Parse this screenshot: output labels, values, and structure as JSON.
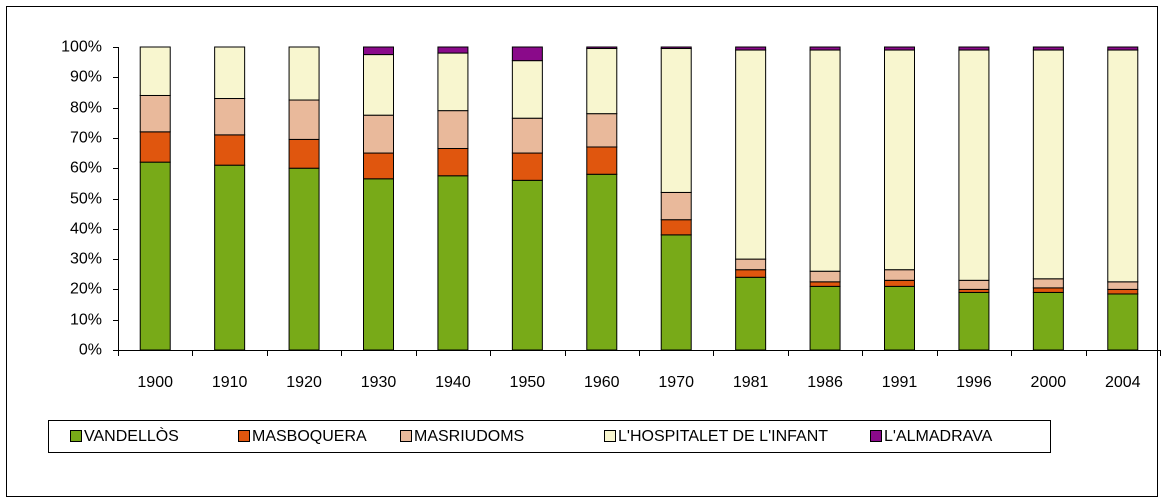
{
  "chart_data": {
    "type": "stacked_bar",
    "categories": [
      "1900",
      "1910",
      "1920",
      "1930",
      "1940",
      "1950",
      "1960",
      "1970",
      "1981",
      "1986",
      "1991",
      "1996",
      "2000",
      "2004"
    ],
    "series": [
      {
        "name": "VANDELLÒS",
        "color": "#78aa18",
        "values": [
          62,
          61,
          60,
          56.5,
          57.5,
          56,
          58,
          38,
          24,
          21,
          21,
          19,
          19,
          18.5
        ]
      },
      {
        "name": "MASBOQUERA",
        "color": "#e0560e",
        "values": [
          10,
          10,
          9.5,
          8.5,
          9,
          9,
          9,
          5,
          2.5,
          1.5,
          2,
          1,
          1.5,
          1.5
        ]
      },
      {
        "name": "MASRIUDOMS",
        "color": "#e9b99b",
        "values": [
          12,
          12,
          13,
          12.5,
          12.5,
          11.5,
          11,
          9,
          3.5,
          3.5,
          3.5,
          3,
          3,
          2.5
        ]
      },
      {
        "name": "L'HOSPITALET DE L'INFANT",
        "color": "#f8f6cf",
        "values": [
          16,
          17,
          17.5,
          20,
          19,
          19,
          21.5,
          47.5,
          69,
          73,
          72.5,
          76,
          75.5,
          76.5
        ]
      },
      {
        "name": "L'ALMADRAVA",
        "color": "#8a0a8a",
        "values": [
          0,
          0,
          0,
          2.5,
          2,
          4.5,
          0.5,
          0.5,
          1,
          1,
          1,
          1,
          1,
          1
        ]
      }
    ],
    "ylim": [
      0,
      100
    ],
    "yticks": [
      {
        "value": 0,
        "label": "0%"
      },
      {
        "value": 10,
        "label": "10%"
      },
      {
        "value": 20,
        "label": "20%"
      },
      {
        "value": 30,
        "label": "30%"
      },
      {
        "value": 40,
        "label": "40%"
      },
      {
        "value": 50,
        "label": "50%"
      },
      {
        "value": 60,
        "label": "60%"
      },
      {
        "value": 70,
        "label": "70%"
      },
      {
        "value": 80,
        "label": "80%"
      },
      {
        "value": 90,
        "label": "90%"
      },
      {
        "value": 100,
        "label": "100%"
      }
    ],
    "grid": false,
    "legend": "bottom"
  }
}
